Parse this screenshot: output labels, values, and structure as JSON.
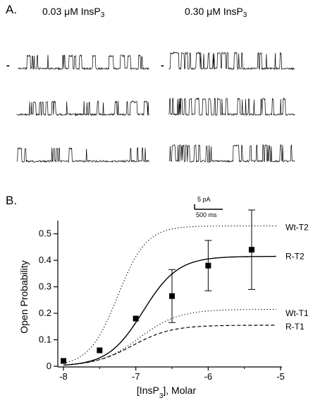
{
  "panel_a": {
    "label": "A.",
    "left_condition": {
      "prefix": "0.03 ",
      "unit": "μM InsP",
      "sub": "3"
    },
    "right_condition": {
      "prefix": "0.30 ",
      "unit": "μM InsP",
      "sub": "3"
    },
    "closed_marker": "-",
    "left_traces": [
      {
        "open_frac": 0.3,
        "seed": 11
      },
      {
        "open_frac": 0.25,
        "seed": 23
      },
      {
        "open_frac": 0.22,
        "seed": 37
      }
    ],
    "right_traces": [
      {
        "open_frac": 0.45,
        "seed": 41
      },
      {
        "open_frac": 0.5,
        "seed": 53
      },
      {
        "open_frac": 0.52,
        "seed": 67
      }
    ]
  },
  "panel_b": {
    "label": "B.",
    "scale_bar": {
      "current": "5 pA",
      "time": "500 ms"
    }
  },
  "chart_data": {
    "type": "line",
    "xlabel_main": "[InsP",
    "xlabel_sub": "3",
    "xlabel_tail": "], Molar",
    "ylabel": "Open Probability",
    "xlim": [
      -8,
      -5
    ],
    "ylim": [
      0,
      0.55
    ],
    "xticks": [
      -8,
      -7,
      -6,
      -5
    ],
    "yticks": [
      0,
      0.1,
      0.2,
      0.3,
      0.4,
      0.5
    ],
    "xtick_labels": [
      "-8",
      "-7",
      "-6",
      "-5"
    ],
    "ytick_labels": [
      "0",
      "0.1",
      "0.2",
      "0.3",
      "0.4",
      "0.5"
    ],
    "series": [
      {
        "name": "Wt-T2",
        "style": "dotted",
        "max": 0.53,
        "ec50_log": -7.25,
        "hill": 2.2,
        "x_end": -5.05
      },
      {
        "name": "R-T2",
        "style": "solid",
        "max": 0.415,
        "ec50_log": -6.9,
        "hill": 1.8,
        "x_end": -5.05
      },
      {
        "name": "Wt-T1",
        "style": "dotted",
        "max": 0.215,
        "ec50_log": -6.95,
        "hill": 1.6,
        "x_end": -5.05
      },
      {
        "name": "R-T1",
        "style": "dashed",
        "max": 0.155,
        "ec50_log": -7.05,
        "hill": 1.6,
        "x_end": -5.05
      }
    ],
    "points": {
      "series": "R-T2",
      "x": [
        -8,
        -7.5,
        -7,
        -6.5,
        -6,
        -5.4
      ],
      "y": [
        0.02,
        0.06,
        0.18,
        0.265,
        0.38,
        0.44
      ],
      "err": [
        0,
        0,
        0,
        0.1,
        0.095,
        0.15
      ]
    },
    "series_label_y": [
      0.525,
      0.415,
      0.2,
      0.15
    ]
  }
}
